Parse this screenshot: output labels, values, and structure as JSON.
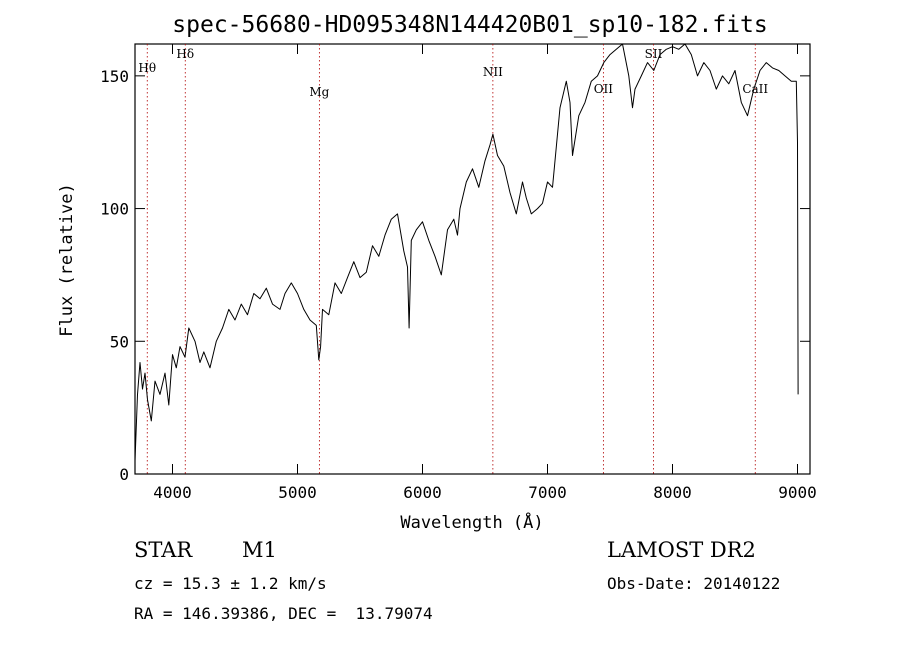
{
  "chart_data": {
    "type": "line",
    "title": "spec-56680-HD095348N144420B01_sp10-182.fits",
    "xlabel": "Wavelength (Å)",
    "ylabel": "Flux (relative)",
    "xlim": [
      3700,
      9100
    ],
    "ylim": [
      0,
      162
    ],
    "x_ticks": [
      4000,
      5000,
      6000,
      7000,
      8000,
      9000
    ],
    "y_ticks": [
      0,
      50,
      100,
      150
    ],
    "grid": false,
    "series": [
      {
        "color": "#000000",
        "x": [
          3700,
          3720,
          3740,
          3760,
          3780,
          3800,
          3830,
          3860,
          3900,
          3940,
          3970,
          4000,
          4030,
          4060,
          4100,
          4130,
          4180,
          4220,
          4250,
          4300,
          4350,
          4400,
          4450,
          4500,
          4550,
          4600,
          4650,
          4700,
          4750,
          4800,
          4860,
          4900,
          4950,
          5000,
          5050,
          5100,
          5150,
          5170,
          5185,
          5200,
          5250,
          5300,
          5350,
          5400,
          5450,
          5500,
          5550,
          5600,
          5650,
          5700,
          5750,
          5800,
          5850,
          5880,
          5893,
          5910,
          5950,
          6000,
          6050,
          6100,
          6150,
          6200,
          6250,
          6280,
          6300,
          6350,
          6400,
          6450,
          6500,
          6540,
          6563,
          6600,
          6650,
          6700,
          6750,
          6800,
          6830,
          6870,
          6920,
          6960,
          7000,
          7040,
          7080,
          7100,
          7150,
          7180,
          7200,
          7250,
          7300,
          7350,
          7400,
          7450,
          7500,
          7550,
          7600,
          7650,
          7680,
          7700,
          7750,
          7800,
          7850,
          7900,
          7950,
          8000,
          8050,
          8100,
          8150,
          8200,
          8250,
          8300,
          8350,
          8400,
          8450,
          8500,
          8550,
          8600,
          8650,
          8700,
          8750,
          8800,
          8850,
          8900,
          8950,
          8990,
          9000,
          9005
        ],
        "y": [
          5,
          30,
          42,
          32,
          38,
          28,
          20,
          35,
          30,
          38,
          26,
          45,
          40,
          48,
          44,
          55,
          50,
          42,
          46,
          40,
          50,
          55,
          62,
          58,
          64,
          60,
          68,
          66,
          70,
          64,
          62,
          68,
          72,
          68,
          62,
          58,
          56,
          43,
          48,
          62,
          60,
          72,
          68,
          74,
          80,
          74,
          76,
          86,
          82,
          90,
          96,
          98,
          84,
          78,
          55,
          88,
          92,
          95,
          88,
          82,
          75,
          92,
          96,
          90,
          100,
          110,
          115,
          108,
          118,
          124,
          128,
          120,
          116,
          106,
          98,
          110,
          104,
          98,
          100,
          102,
          110,
          108,
          128,
          138,
          148,
          140,
          120,
          135,
          140,
          148,
          150,
          155,
          158,
          160,
          162,
          150,
          138,
          145,
          150,
          155,
          152,
          158,
          160,
          161,
          160,
          162,
          158,
          150,
          155,
          152,
          145,
          150,
          147,
          152,
          140,
          135,
          145,
          152,
          155,
          153,
          152,
          150,
          148,
          148,
          125,
          30
        ]
      }
    ],
    "annotations": [
      {
        "label": "Hθ",
        "x": 3798
      },
      {
        "label": "Hδ",
        "x": 4102
      },
      {
        "label": "Mg",
        "x": 5175
      },
      {
        "label": "NII",
        "x": 6563
      },
      {
        "label": "OII",
        "x": 7447
      },
      {
        "label": "SII",
        "x": 7848
      },
      {
        "label": "CaII",
        "x": 8662
      }
    ]
  },
  "footer": {
    "object_type": "STAR",
    "subclass": "M1",
    "survey": "LAMOST DR2",
    "cz": "cz = 15.3 ± 1.2 km/s",
    "obs_date": "Obs-Date: 20140122",
    "coords": "RA = 146.39386, DEC =  13.79074"
  }
}
